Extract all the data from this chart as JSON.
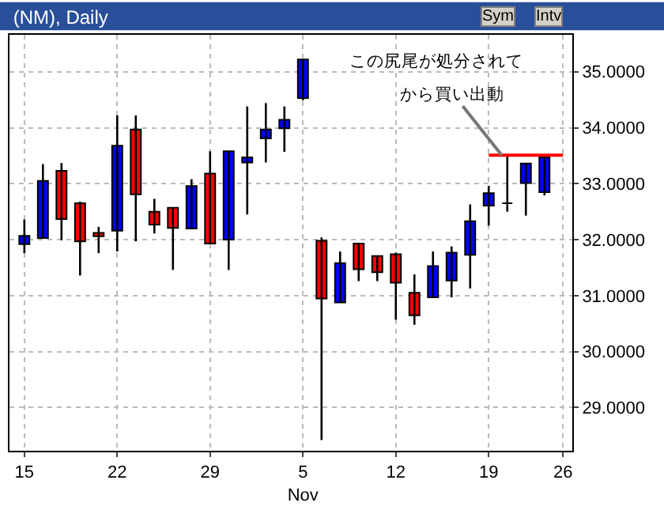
{
  "chart_data": {
    "type": "candlestick",
    "title": "(NM), Daily",
    "categories": [
      "15",
      null,
      null,
      null,
      null,
      "22",
      null,
      null,
      null,
      null,
      "29",
      null,
      null,
      null,
      null,
      "5\nNov",
      null,
      null,
      null,
      null,
      "12",
      null,
      null,
      null,
      null,
      "19",
      null,
      null,
      null,
      "26"
    ],
    "ohlc": [
      [
        31.92,
        32.36,
        31.76,
        32.07
      ],
      [
        32.03,
        33.35,
        32.03,
        33.05
      ],
      [
        33.23,
        33.37,
        31.99,
        32.37
      ],
      [
        32.65,
        32.68,
        31.36,
        31.97
      ],
      [
        32.12,
        32.23,
        31.76,
        32.06
      ],
      [
        32.16,
        34.22,
        31.79,
        33.68
      ],
      [
        33.97,
        34.22,
        31.97,
        32.81
      ],
      [
        32.5,
        32.73,
        32.11,
        32.27
      ],
      [
        32.57,
        32.57,
        31.46,
        32.21
      ],
      [
        32.2,
        33.08,
        32.19,
        32.96
      ],
      [
        33.18,
        33.58,
        31.93,
        31.93
      ],
      [
        32.0,
        33.58,
        31.46,
        33.58
      ],
      [
        33.38,
        34.38,
        32.45,
        33.47
      ],
      [
        33.81,
        34.44,
        33.38,
        33.97
      ],
      [
        33.99,
        34.38,
        33.57,
        34.14
      ],
      [
        34.53,
        35.22,
        34.49,
        35.22
      ],
      [
        31.98,
        32.04,
        28.42,
        30.95
      ],
      [
        30.88,
        31.79,
        30.88,
        31.58
      ],
      [
        31.93,
        31.93,
        31.26,
        31.47
      ],
      [
        31.71,
        31.71,
        31.26,
        31.42
      ],
      [
        31.74,
        31.77,
        30.57,
        31.23
      ],
      [
        31.05,
        31.38,
        30.48,
        30.65
      ],
      [
        30.97,
        31.79,
        30.97,
        31.53
      ],
      [
        31.27,
        31.88,
        30.97,
        31.77
      ],
      [
        31.73,
        32.63,
        31.13,
        32.33
      ],
      [
        32.61,
        32.96,
        32.25,
        32.83
      ],
      [
        32.65,
        33.49,
        32.5,
        32.65
      ],
      [
        33.01,
        33.36,
        32.43,
        33.36
      ],
      [
        32.85,
        33.47,
        32.79,
        33.47
      ],
      null
    ],
    "colors": [
      "#0000ff",
      "#0000ff",
      "#ff0000",
      "#ff0000",
      "#ff0000",
      "#0000ff",
      "#ff0000",
      "#ff0000",
      "#ff0000",
      "#0000ff",
      "#ff0000",
      "#0000ff",
      "#0000ff",
      "#0000ff",
      "#0000ff",
      "#0000ff",
      "#ff0000",
      "#0000ff",
      "#ff0000",
      "#ff0000",
      "#ff0000",
      "#ff0000",
      "#0000ff",
      "#0000ff",
      "#0000ff",
      "#0000ff",
      "#000000",
      "#0000ff",
      "#0000ff",
      null
    ],
    "series": [
      {
        "type": "line",
        "color": "#ff0000",
        "values": [
          null,
          null,
          null,
          null,
          null,
          null,
          null,
          null,
          null,
          null,
          null,
          null,
          null,
          null,
          null,
          null,
          null,
          null,
          null,
          null,
          null,
          null,
          null,
          null,
          null,
          33.51,
          33.51,
          33.51,
          33.51,
          33.51
        ]
      }
    ],
    "ylim": [
      28.23,
      35.66
    ],
    "yticks": [
      {
        "value": 29,
        "label": "29.0000"
      },
      {
        "value": 30,
        "label": "30.0000"
      },
      {
        "value": 31,
        "label": "31.0000"
      },
      {
        "value": 32,
        "label": "32.0000"
      },
      {
        "value": 33,
        "label": "33.0000"
      },
      {
        "value": 34,
        "label": "34.0000"
      },
      {
        "value": 35,
        "label": "35.0000"
      }
    ],
    "grid": true,
    "annotations": [
      "この尻尾が処分されて",
      {
        "text": "から買い出動",
        "x": "19",
        "y": 33.51
      },
      "Sym",
      "Intv"
    ]
  }
}
